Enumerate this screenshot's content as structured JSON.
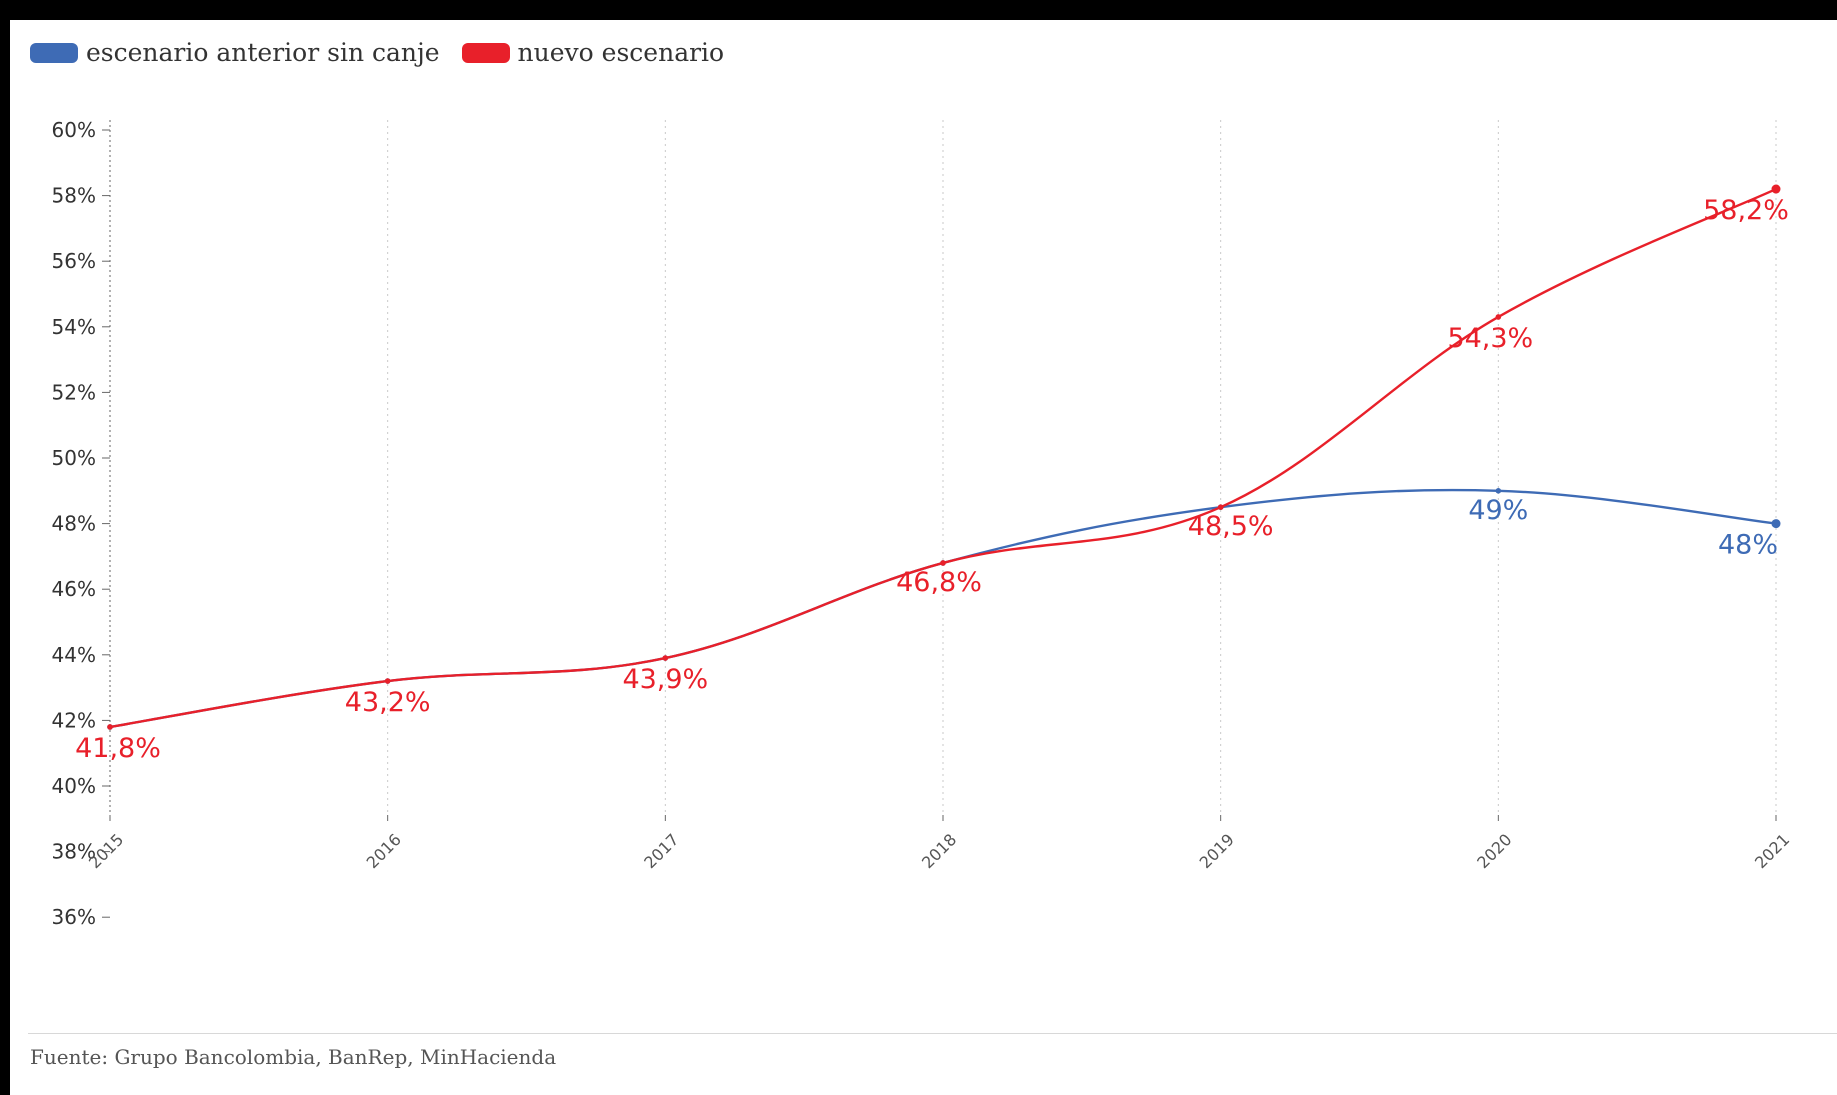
{
  "legend": [
    {
      "label": "escenario anterior sin canje",
      "color": "#3e6bb5"
    },
    {
      "label": "nuevo escenario",
      "color": "#e8202a"
    }
  ],
  "source": "Fuente: Grupo Bancolombia, BanRep, MinHacienda",
  "chart_data": {
    "type": "line",
    "x": [
      "2015",
      "2016",
      "2017",
      "2018",
      "2019",
      "2020",
      "2021"
    ],
    "ylim": [
      35,
      60
    ],
    "yticks": [
      60,
      58,
      56,
      54,
      52,
      50,
      48,
      46,
      44,
      42,
      40,
      38,
      36
    ],
    "ytick_labels": [
      "60%",
      "58%",
      "56%",
      "54%",
      "52%",
      "50%",
      "48%",
      "46%",
      "44%",
      "42%",
      "40%",
      "38%",
      "36%"
    ],
    "grid": "vertical-dotted",
    "legend_position": "top-left",
    "series": [
      {
        "name": "escenario anterior sin canje",
        "color": "#3e6bb5",
        "values": [
          41.8,
          43.2,
          43.9,
          46.8,
          48.5,
          49,
          48
        ],
        "data_labels": [
          "",
          "",
          "",
          "",
          "",
          "49%",
          "48%"
        ]
      },
      {
        "name": "nuevo escenario",
        "color": "#e8202a",
        "values": [
          41.8,
          43.2,
          43.9,
          46.8,
          48.5,
          54.3,
          58.2
        ],
        "data_labels": [
          "41,8%",
          "43,2%",
          "43,9%",
          "46,8%",
          "48,5%",
          "54,3%",
          "58,2%"
        ]
      }
    ]
  }
}
